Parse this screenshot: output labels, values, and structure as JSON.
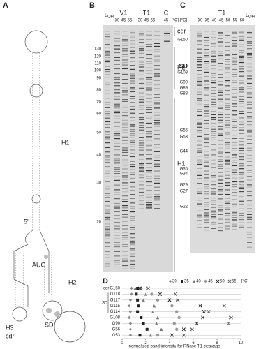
{
  "panel_a": {
    "label": "A",
    "labels": {
      "h1": "H1",
      "five": "5'",
      "aug": "AUG",
      "h2": "H2",
      "h3": "H3",
      "cdr": "cdr",
      "sd": "SD"
    }
  },
  "panel_b": {
    "label": "B",
    "ladder": "L",
    "ladder_sub": "OH",
    "groups": [
      {
        "name": "V1",
        "temps": [
          30,
          45,
          55
        ]
      },
      {
        "name": "T1",
        "temps": [
          30,
          45,
          55
        ]
      },
      {
        "name": "C",
        "temps": [
          45
        ]
      }
    ],
    "unit": "[°C]",
    "markers": [
      130,
      120,
      110,
      100,
      90,
      80,
      70,
      60,
      50,
      40,
      30,
      20
    ],
    "regions": [
      "cdr",
      "H2",
      "H1"
    ]
  },
  "panel_c": {
    "label": "C",
    "group": "T1",
    "temps": [
      30,
      35,
      40,
      45,
      50,
      55,
      60
    ],
    "unit": "[°C]",
    "ladder": "L",
    "ladder_sub": "OH",
    "bands": [
      "G150",
      "SD",
      "G108",
      "G90",
      "G89",
      "G88",
      "G56",
      "G53",
      "G44",
      "G35",
      "G34",
      "G29",
      "G27",
      "G22"
    ]
  },
  "chart_data": {
    "type": "scatter",
    "label": "D",
    "x_label": "normalized band intensity for RNase T1 cleavage",
    "unit": "[°C]",
    "groups": [
      "cdr",
      "SD"
    ],
    "categories": [
      "G150",
      "G118",
      "G117",
      "G115",
      "G114",
      "G108",
      "G90",
      "G56",
      "G53"
    ],
    "xlim": [
      0,
      10
    ],
    "xticks": [
      0,
      2,
      4,
      6,
      8,
      10
    ],
    "series": [
      {
        "name": "30",
        "marker": "diamond",
        "color": "#888",
        "values": [
          0.8,
          0.8,
          0.7,
          0.6,
          0.7,
          0.6,
          0.7,
          0.7,
          0.7
        ]
      },
      {
        "name": "35",
        "marker": "square",
        "color": "#222",
        "values": [
          1.3,
          1.2,
          1.3,
          1.4,
          1.3,
          1.6,
          1.8,
          2.1,
          1.5
        ]
      },
      {
        "name": "40",
        "marker": "triangle",
        "color": "#777",
        "values": [
          1.1,
          2.0,
          1.8,
          2.7,
          2.6,
          3.0,
          2.9,
          3.3,
          2.4
        ]
      },
      {
        "name": "45",
        "marker": "circle",
        "color": "#999",
        "values": [
          1.6,
          2.5,
          3.0,
          4.2,
          4.6,
          4.8,
          4.4,
          4.6,
          3.0
        ]
      },
      {
        "name": "50",
        "marker": "x",
        "color": "#222",
        "values": [
          1.5,
          3.2,
          4.0,
          6.6,
          6.9,
          6.8,
          6.3,
          5.2,
          4.2
        ]
      },
      {
        "name": "55",
        "marker": "x",
        "color": "#555",
        "values": [
          2.2,
          4.5,
          4.7,
          8.6,
          7.3,
          9.2,
          9.0,
          5.9,
          5.2
        ]
      }
    ]
  }
}
